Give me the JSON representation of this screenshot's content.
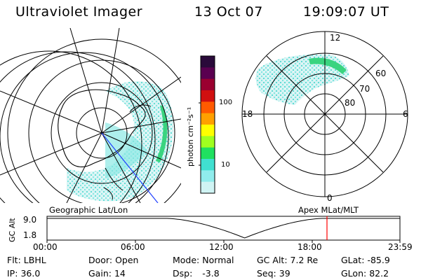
{
  "header": {
    "title": "Ultraviolet Imager",
    "date": "13 Oct 07",
    "time": "19:09:07 UT"
  },
  "colorbar": {
    "unit": "photon cm⁻²s⁻¹",
    "ticks": [
      "100",
      "10"
    ],
    "colors": [
      "#2a0a3a",
      "#5a0050",
      "#9a0030",
      "#d01010",
      "#ff5a00",
      "#ffa000",
      "#ffff00",
      "#a0ff20",
      "#20e060",
      "#40e0d0",
      "#90ecec",
      "#d0f4f4"
    ]
  },
  "geo_panel": {
    "label": "Geographic Lat/Lon"
  },
  "polar_panel": {
    "label": "Apex MLat/MLT",
    "mlt_labels": {
      "top": "12",
      "left": "18",
      "right": "6",
      "bottom": "0"
    },
    "lat_labels": [
      "60",
      "70",
      "80"
    ]
  },
  "timeline": {
    "ylabel": "GC Alt",
    "ymax": "9.0",
    "ymin": "1.8",
    "x_ticks": [
      "00:00",
      "06:00",
      "12:00",
      "18:00",
      "23:59"
    ],
    "marker_color": "#ff0000"
  },
  "footer": {
    "row1": [
      {
        "k": "Flt:",
        "v": "LBHL"
      },
      {
        "k": "Door:",
        "v": "Open"
      },
      {
        "k": "Mode:",
        "v": "Normal"
      },
      {
        "k": "GC Alt:",
        "v": "7.2 Re"
      },
      {
        "k": "GLat:",
        "v": "-85.9"
      }
    ],
    "row2": [
      {
        "k": "IP:",
        "v": "36.0"
      },
      {
        "k": "Gain:",
        "v": "14"
      },
      {
        "k": "Dsp:",
        "v": "-3.8"
      },
      {
        "k": "Seq:",
        "v": "39"
      },
      {
        "k": "GLon:",
        "v": "82.2"
      }
    ]
  }
}
